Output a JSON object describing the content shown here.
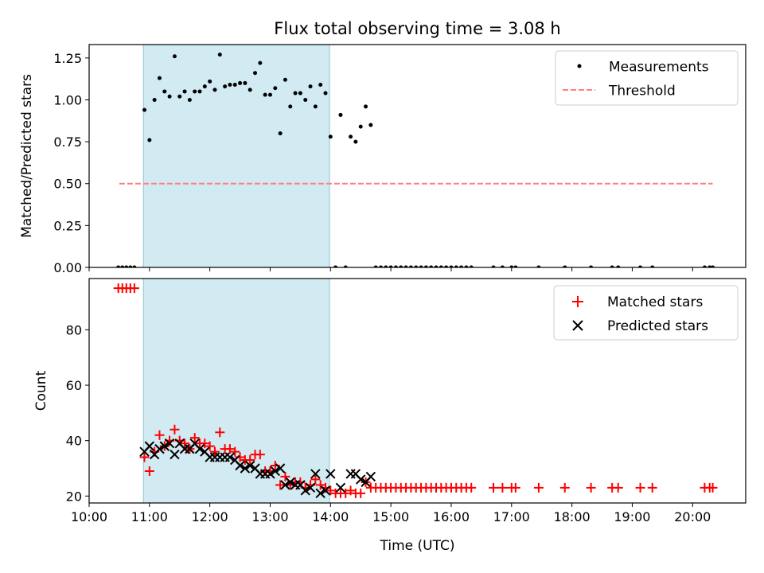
{
  "title": "Flux total observing time = 3.08 h",
  "xlabel": "Time (UTC)",
  "colors": {
    "shade": "#add8e6",
    "measure": "#000000",
    "threshold": "#ff7f7f",
    "matched": "#ff0000",
    "predicted": "#000000"
  },
  "chart_data": [
    {
      "type": "scatter",
      "panel": "top",
      "ylabel": "Matched/Predicted stars",
      "xlim_hours": [
        10.0,
        20.88
      ],
      "ylim": [
        0.0,
        1.33
      ],
      "yticks": [
        "0.00",
        "0.25",
        "0.50",
        "0.75",
        "1.00",
        "1.25"
      ],
      "xtick_labels": [
        "10:00",
        "11:00",
        "12:00",
        "13:00",
        "14:00",
        "15:00",
        "16:00",
        "17:00",
        "18:00",
        "19:00",
        "20:00"
      ],
      "shaded_interval": [
        "10:54",
        "13:59"
      ],
      "legend": {
        "placement": "top-right",
        "entries": [
          "Measurements",
          "Threshold"
        ]
      },
      "threshold": {
        "name": "Threshold",
        "value": 0.5,
        "x": [
          "10:30",
          "20:20"
        ]
      },
      "series": [
        {
          "name": "Measurements",
          "points": [
            [
              "10:29",
              0.0
            ],
            [
              "10:33",
              0.0
            ],
            [
              "10:37",
              0.0
            ],
            [
              "10:41",
              0.0
            ],
            [
              "10:45",
              0.0
            ],
            [
              "10:55",
              0.94
            ],
            [
              "11:00",
              0.76
            ],
            [
              "11:05",
              1.0
            ],
            [
              "11:10",
              1.13
            ],
            [
              "11:15",
              1.05
            ],
            [
              "11:20",
              1.02
            ],
            [
              "11:25",
              1.26
            ],
            [
              "11:30",
              1.02
            ],
            [
              "11:35",
              1.05
            ],
            [
              "11:40",
              1.0
            ],
            [
              "11:45",
              1.05
            ],
            [
              "11:50",
              1.05
            ],
            [
              "11:55",
              1.08
            ],
            [
              "12:00",
              1.11
            ],
            [
              "12:05",
              1.06
            ],
            [
              "12:10",
              1.27
            ],
            [
              "12:15",
              1.08
            ],
            [
              "12:20",
              1.09
            ],
            [
              "12:25",
              1.09
            ],
            [
              "12:30",
              1.1
            ],
            [
              "12:35",
              1.1
            ],
            [
              "12:40",
              1.06
            ],
            [
              "12:45",
              1.16
            ],
            [
              "12:50",
              1.22
            ],
            [
              "12:55",
              1.03
            ],
            [
              "13:00",
              1.03
            ],
            [
              "13:05",
              1.07
            ],
            [
              "13:10",
              0.8
            ],
            [
              "13:15",
              1.12
            ],
            [
              "13:20",
              0.96
            ],
            [
              "13:25",
              1.04
            ],
            [
              "13:30",
              1.04
            ],
            [
              "13:35",
              1.0
            ],
            [
              "13:40",
              1.08
            ],
            [
              "13:45",
              0.96
            ],
            [
              "13:50",
              1.09
            ],
            [
              "13:55",
              1.04
            ],
            [
              "14:00",
              0.78
            ],
            [
              "14:05",
              0.0
            ],
            [
              "14:10",
              0.91
            ],
            [
              "14:15",
              0.0
            ],
            [
              "14:20",
              0.78
            ],
            [
              "14:25",
              0.75
            ],
            [
              "14:30",
              0.84
            ],
            [
              "14:35",
              0.96
            ],
            [
              "14:40",
              0.85
            ],
            [
              "14:45",
              0.0
            ],
            [
              "14:50",
              0.0
            ],
            [
              "14:55",
              0.0
            ],
            [
              "15:00",
              0.0
            ],
            [
              "15:05",
              0.0
            ],
            [
              "15:10",
              0.0
            ],
            [
              "15:15",
              0.0
            ],
            [
              "15:20",
              0.0
            ],
            [
              "15:25",
              0.0
            ],
            [
              "15:30",
              0.0
            ],
            [
              "15:35",
              0.0
            ],
            [
              "15:40",
              0.0
            ],
            [
              "15:45",
              0.0
            ],
            [
              "15:50",
              0.0
            ],
            [
              "15:55",
              0.0
            ],
            [
              "16:00",
              0.0
            ],
            [
              "16:05",
              0.0
            ],
            [
              "16:10",
              0.0
            ],
            [
              "16:15",
              0.0
            ],
            [
              "16:20",
              0.0
            ],
            [
              "16:42",
              0.0
            ],
            [
              "16:51",
              0.0
            ],
            [
              "17:00",
              0.0
            ],
            [
              "17:04",
              0.0
            ],
            [
              "17:27",
              0.0
            ],
            [
              "17:53",
              0.0
            ],
            [
              "18:19",
              0.0
            ],
            [
              "18:40",
              0.0
            ],
            [
              "18:46",
              0.0
            ],
            [
              "19:08",
              0.0
            ],
            [
              "19:20",
              0.0
            ],
            [
              "20:12",
              0.0
            ],
            [
              "20:17",
              0.0
            ],
            [
              "20:20",
              0.0
            ]
          ]
        }
      ]
    },
    {
      "type": "scatter",
      "panel": "bottom",
      "ylabel": "Count",
      "xlim_hours": [
        10.0,
        20.88
      ],
      "ylim": [
        17.5,
        98.5
      ],
      "yticks": [
        "20",
        "40",
        "60",
        "80"
      ],
      "xtick_labels": [
        "10:00",
        "11:00",
        "12:00",
        "13:00",
        "14:00",
        "15:00",
        "16:00",
        "17:00",
        "18:00",
        "19:00",
        "20:00"
      ],
      "shaded_interval": [
        "10:54",
        "13:59"
      ],
      "legend": {
        "placement": "top-right",
        "entries": [
          "Matched stars",
          "Predicted stars"
        ]
      },
      "series": [
        {
          "name": "Matched stars",
          "marker": "plus",
          "points": [
            [
              "10:29",
              95
            ],
            [
              "10:33",
              95
            ],
            [
              "10:37",
              95
            ],
            [
              "10:41",
              95
            ],
            [
              "10:45",
              95
            ],
            [
              "10:55",
              34
            ],
            [
              "11:00",
              29
            ],
            [
              "11:05",
              36
            ],
            [
              "11:10",
              42
            ],
            [
              "11:15",
              38
            ],
            [
              "11:20",
              40
            ],
            [
              "11:25",
              44
            ],
            [
              "11:30",
              40
            ],
            [
              "11:35",
              39
            ],
            [
              "11:40",
              37
            ],
            [
              "11:45",
              41
            ],
            [
              "11:50",
              39
            ],
            [
              "11:55",
              39
            ],
            [
              "12:00",
              38
            ],
            [
              "12:05",
              36
            ],
            [
              "12:10",
              43
            ],
            [
              "12:15",
              37
            ],
            [
              "12:20",
              37
            ],
            [
              "12:25",
              36
            ],
            [
              "12:30",
              34
            ],
            [
              "12:35",
              33
            ],
            [
              "12:40",
              33
            ],
            [
              "12:45",
              35
            ],
            [
              "12:50",
              35
            ],
            [
              "12:55",
              29
            ],
            [
              "13:00",
              29
            ],
            [
              "13:05",
              31
            ],
            [
              "13:10",
              24
            ],
            [
              "13:15",
              27
            ],
            [
              "13:20",
              24
            ],
            [
              "13:25",
              25
            ],
            [
              "13:30",
              25
            ],
            [
              "13:35",
              23
            ],
            [
              "13:40",
              24
            ],
            [
              "13:45",
              26
            ],
            [
              "13:50",
              24
            ],
            [
              "13:55",
              23
            ],
            [
              "14:00",
              22
            ],
            [
              "14:05",
              21
            ],
            [
              "14:10",
              21
            ],
            [
              "14:15",
              21
            ],
            [
              "14:20",
              22
            ],
            [
              "14:25",
              21
            ],
            [
              "14:30",
              21
            ],
            [
              "14:35",
              25
            ],
            [
              "14:40",
              23
            ],
            [
              "14:45",
              23
            ],
            [
              "14:50",
              23
            ],
            [
              "14:55",
              23
            ],
            [
              "15:00",
              23
            ],
            [
              "15:05",
              23
            ],
            [
              "15:10",
              23
            ],
            [
              "15:15",
              23
            ],
            [
              "15:20",
              23
            ],
            [
              "15:25",
              23
            ],
            [
              "15:30",
              23
            ],
            [
              "15:35",
              23
            ],
            [
              "15:40",
              23
            ],
            [
              "15:45",
              23
            ],
            [
              "15:50",
              23
            ],
            [
              "15:55",
              23
            ],
            [
              "16:00",
              23
            ],
            [
              "16:05",
              23
            ],
            [
              "16:10",
              23
            ],
            [
              "16:15",
              23
            ],
            [
              "16:20",
              23
            ],
            [
              "16:42",
              23
            ],
            [
              "16:51",
              23
            ],
            [
              "17:00",
              23
            ],
            [
              "17:04",
              23
            ],
            [
              "17:27",
              23
            ],
            [
              "17:53",
              23
            ],
            [
              "18:19",
              23
            ],
            [
              "18:40",
              23
            ],
            [
              "18:46",
              23
            ],
            [
              "19:08",
              23
            ],
            [
              "19:20",
              23
            ],
            [
              "20:12",
              23
            ],
            [
              "20:17",
              23
            ],
            [
              "20:20",
              23
            ]
          ]
        },
        {
          "name": "Predicted stars",
          "marker": "x",
          "points": [
            [
              "10:55",
              36
            ],
            [
              "11:00",
              38
            ],
            [
              "11:05",
              35
            ],
            [
              "11:10",
              37
            ],
            [
              "11:15",
              38
            ],
            [
              "11:20",
              39
            ],
            [
              "11:25",
              35
            ],
            [
              "11:30",
              39
            ],
            [
              "11:35",
              37
            ],
            [
              "11:40",
              37
            ],
            [
              "11:45",
              39
            ],
            [
              "11:50",
              37
            ],
            [
              "11:55",
              36
            ],
            [
              "12:00",
              34
            ],
            [
              "12:05",
              34
            ],
            [
              "12:10",
              34
            ],
            [
              "12:15",
              34
            ],
            [
              "12:20",
              34
            ],
            [
              "12:25",
              33
            ],
            [
              "12:30",
              31
            ],
            [
              "12:35",
              30
            ],
            [
              "12:40",
              31
            ],
            [
              "12:45",
              30
            ],
            [
              "12:50",
              28
            ],
            [
              "12:55",
              28
            ],
            [
              "13:00",
              28
            ],
            [
              "13:05",
              29
            ],
            [
              "13:10",
              30
            ],
            [
              "13:15",
              24
            ],
            [
              "13:20",
              25
            ],
            [
              "13:25",
              24
            ],
            [
              "13:30",
              24
            ],
            [
              "13:35",
              22
            ],
            [
              "13:40",
              23
            ],
            [
              "13:45",
              28
            ],
            [
              "13:50",
              21
            ],
            [
              "13:55",
              22
            ],
            [
              "14:00",
              28
            ],
            [
              "14:10",
              23
            ],
            [
              "14:20",
              28
            ],
            [
              "14:25",
              28
            ],
            [
              "14:30",
              26
            ],
            [
              "14:35",
              25
            ],
            [
              "14:40",
              27
            ]
          ]
        }
      ]
    }
  ]
}
